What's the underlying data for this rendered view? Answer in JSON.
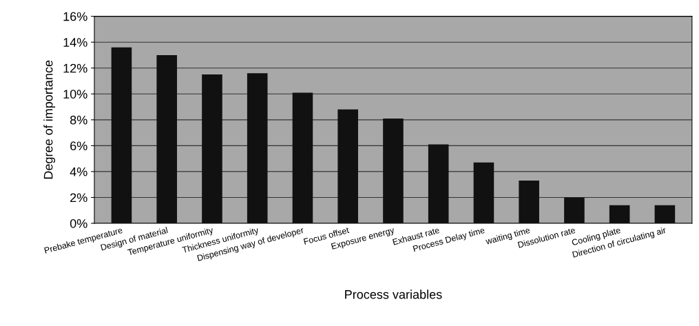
{
  "chart_data": {
    "type": "bar",
    "xlabel": "Process variables",
    "ylabel": "Degree of importance",
    "categories": [
      "Prebake temperature",
      "Design of material",
      "Temperature uniformity",
      "Thickness uniformity",
      "Dispensing way of developer",
      "Focus offset",
      "Exposure energy",
      "Exhaust rate",
      "Process Delay time",
      "waiting time",
      "Dissolution rate",
      "Cooling plate",
      "Direction of circulating air"
    ],
    "values": [
      13.6,
      13.0,
      11.5,
      11.6,
      10.1,
      8.8,
      8.1,
      6.1,
      4.7,
      3.3,
      2.0,
      1.4,
      1.4
    ],
    "color": "#111111",
    "ylim": [
      0,
      16
    ],
    "yticks": [
      {
        "value": 0,
        "label": "0%"
      },
      {
        "value": 2,
        "label": "2%"
      },
      {
        "value": 4,
        "label": "4%"
      },
      {
        "value": 6,
        "label": "6%"
      },
      {
        "value": 8,
        "label": "8%"
      },
      {
        "value": 10,
        "label": "10%"
      },
      {
        "value": 12,
        "label": "12%"
      },
      {
        "value": 14,
        "label": "14%"
      },
      {
        "value": 16,
        "label": "16%"
      }
    ],
    "grid": "y"
  }
}
